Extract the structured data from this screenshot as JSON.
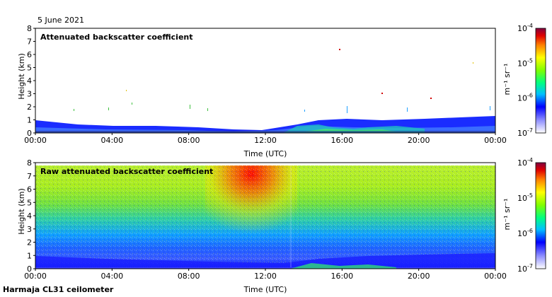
{
  "date_label": "5 June 2021",
  "station_label": "Harmaja CL31 ceilometer",
  "colorbar": {
    "unit_label": "m⁻¹ sr⁻¹",
    "tick_exponents": [
      "-4",
      "-5",
      "-6",
      "-7"
    ],
    "tick_base": "10"
  },
  "chart_data": [
    {
      "type": "heatmap",
      "title": "Attenuated backscatter coefficient",
      "xlabel": "Time (UTC)",
      "ylabel": "Height (km)",
      "x_ticks": [
        "00:00",
        "04:00",
        "08:00",
        "12:00",
        "16:00",
        "20:00",
        "00:00"
      ],
      "y_ticks": [
        "0",
        "1",
        "2",
        "3",
        "4",
        "5",
        "6",
        "7",
        "8"
      ],
      "ylim": [
        0,
        8
      ],
      "xlim_hours": [
        0,
        24
      ],
      "color_scale": {
        "min": "1e-7",
        "max": "1e-4",
        "log": true
      }
    },
    {
      "type": "heatmap",
      "title": "Raw attenuated backscatter coefficient",
      "xlabel": "Time (UTC)",
      "ylabel": "Height (km)",
      "x_ticks": [
        "00:00",
        "04:00",
        "08:00",
        "12:00",
        "16:00",
        "20:00",
        "00:00"
      ],
      "y_ticks": [
        "0",
        "1",
        "2",
        "3",
        "4",
        "5",
        "6",
        "7",
        "8"
      ],
      "ylim": [
        0,
        8
      ],
      "xlim_hours": [
        0,
        24
      ],
      "color_scale": {
        "min": "1e-7",
        "max": "1e-4",
        "log": true
      }
    }
  ]
}
